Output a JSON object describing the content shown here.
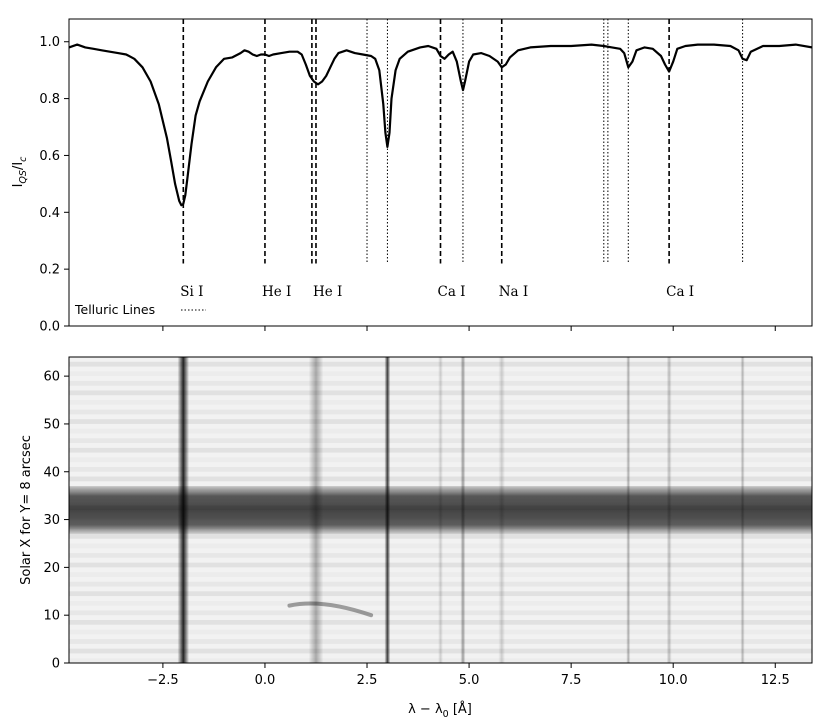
{
  "chart_data": [
    {
      "type": "line",
      "ylabel": "I",
      "ylabel_sub": "QS",
      "ylabel_mid": "/I",
      "ylabel_sub2": "c",
      "xlim": [
        -4.8,
        13.4
      ],
      "ylim": [
        0.0,
        1.08
      ],
      "yticks": [
        0.0,
        0.2,
        0.4,
        0.6,
        0.8,
        1.0
      ],
      "ytick_labels": [
        "0.0",
        "0.2",
        "0.4",
        "0.6",
        "0.8",
        "1.0"
      ],
      "xticks": [
        -2.5,
        0.0,
        2.5,
        5.0,
        7.5,
        10.0,
        12.5
      ],
      "legend_text": "Telluric Lines",
      "grid": false,
      "series": [
        {
          "x": [
            -4.8,
            -4.6,
            -4.4,
            -4.2,
            -4.0,
            -3.8,
            -3.6,
            -3.4,
            -3.2,
            -3.0,
            -2.8,
            -2.6,
            -2.4,
            -2.3,
            -2.2,
            -2.1,
            -2.05,
            -2.0,
            -1.95,
            -1.9,
            -1.8,
            -1.7,
            -1.6,
            -1.4,
            -1.2,
            -1.0,
            -0.8,
            -0.6,
            -0.5,
            -0.4,
            -0.3,
            -0.2,
            -0.1,
            0.0,
            0.1,
            0.2,
            0.4,
            0.6,
            0.8,
            0.9,
            1.0,
            1.1,
            1.2,
            1.3,
            1.4,
            1.5,
            1.6,
            1.7,
            1.8,
            2.0,
            2.2,
            2.4,
            2.6,
            2.7,
            2.8,
            2.9,
            2.95,
            3.0,
            3.05,
            3.1,
            3.2,
            3.3,
            3.5,
            3.8,
            4.0,
            4.2,
            4.3,
            4.4,
            4.5,
            4.6,
            4.7,
            4.8,
            4.85,
            4.9,
            5.0,
            5.1,
            5.3,
            5.5,
            5.7,
            5.8,
            5.9,
            6.0,
            6.2,
            6.5,
            7.0,
            7.5,
            8.0,
            8.3,
            8.5,
            8.7,
            8.8,
            8.9,
            9.0,
            9.1,
            9.3,
            9.5,
            9.7,
            9.8,
            9.9,
            10.0,
            10.1,
            10.3,
            10.6,
            11.0,
            11.4,
            11.6,
            11.7,
            11.8,
            11.9,
            12.2,
            12.6,
            13.0,
            13.4
          ],
          "y": [
            0.98,
            0.99,
            0.98,
            0.975,
            0.97,
            0.965,
            0.96,
            0.955,
            0.94,
            0.91,
            0.86,
            0.78,
            0.66,
            0.58,
            0.5,
            0.44,
            0.425,
            0.43,
            0.46,
            0.52,
            0.64,
            0.74,
            0.79,
            0.86,
            0.91,
            0.94,
            0.945,
            0.96,
            0.97,
            0.965,
            0.955,
            0.95,
            0.955,
            0.955,
            0.95,
            0.955,
            0.96,
            0.965,
            0.965,
            0.955,
            0.92,
            0.88,
            0.86,
            0.85,
            0.86,
            0.88,
            0.91,
            0.94,
            0.96,
            0.97,
            0.96,
            0.955,
            0.95,
            0.94,
            0.9,
            0.78,
            0.68,
            0.63,
            0.68,
            0.8,
            0.9,
            0.94,
            0.965,
            0.98,
            0.985,
            0.975,
            0.95,
            0.94,
            0.955,
            0.965,
            0.93,
            0.86,
            0.83,
            0.86,
            0.93,
            0.955,
            0.96,
            0.95,
            0.93,
            0.91,
            0.92,
            0.945,
            0.97,
            0.98,
            0.985,
            0.985,
            0.99,
            0.985,
            0.98,
            0.975,
            0.96,
            0.91,
            0.93,
            0.97,
            0.98,
            0.975,
            0.95,
            0.92,
            0.895,
            0.93,
            0.975,
            0.985,
            0.99,
            0.99,
            0.985,
            0.97,
            0.94,
            0.935,
            0.965,
            0.985,
            0.985,
            0.99,
            0.98
          ]
        }
      ],
      "annotations": [
        {
          "label": "Si I",
          "x": -2.0,
          "style": "dashed"
        },
        {
          "label": "He I",
          "x": 0.0,
          "style": "dashed"
        },
        {
          "label": "He I",
          "x": 1.25,
          "style": "dashed"
        },
        {
          "label": "",
          "x": 1.15,
          "style": "dashed"
        },
        {
          "label": "Ca I",
          "x": 4.3,
          "style": "dashed"
        },
        {
          "label": "Na I",
          "x": 5.8,
          "style": "dashed"
        },
        {
          "label": "Ca I",
          "x": 9.9,
          "style": "dashed"
        }
      ],
      "telluric_lines": [
        2.5,
        3.0,
        4.85,
        8.3,
        8.4,
        8.9,
        11.7
      ]
    },
    {
      "type": "heatmap",
      "xlabel": "λ − λ",
      "xlabel_sub": "0",
      "xlabel_unit": " [Å]",
      "ylabel": "Solar X for Y= 8  arcsec",
      "xlim": [
        -4.8,
        13.4
      ],
      "ylim": [
        0,
        64
      ],
      "xticks": [
        -2.5,
        0.0,
        2.5,
        5.0,
        7.5,
        10.0,
        12.5
      ],
      "xtick_labels": [
        "−2.5",
        "0.0",
        "2.5",
        "5.0",
        "7.5",
        "10.0",
        "12.5"
      ],
      "yticks": [
        0,
        10,
        20,
        30,
        40,
        50,
        60
      ],
      "ytick_labels": [
        "0",
        "10",
        "20",
        "30",
        "40",
        "50",
        "60"
      ],
      "colormap": "grayscale",
      "dark_band": {
        "ymin": 27,
        "ymax": 37
      },
      "vertical_features": [
        {
          "x": -2.0,
          "strength": 0.85,
          "width": 0.14
        },
        {
          "x": 3.0,
          "strength": 0.75,
          "width": 0.07
        },
        {
          "x": 1.25,
          "strength": 0.3,
          "width": 0.18
        },
        {
          "x": 4.85,
          "strength": 0.35,
          "width": 0.06
        },
        {
          "x": 8.9,
          "strength": 0.28,
          "width": 0.05
        },
        {
          "x": 9.9,
          "strength": 0.22,
          "width": 0.06
        },
        {
          "x": 11.7,
          "strength": 0.25,
          "width": 0.05
        },
        {
          "x": 4.3,
          "strength": 0.15,
          "width": 0.06
        },
        {
          "x": 5.8,
          "strength": 0.15,
          "width": 0.08
        }
      ]
    }
  ]
}
